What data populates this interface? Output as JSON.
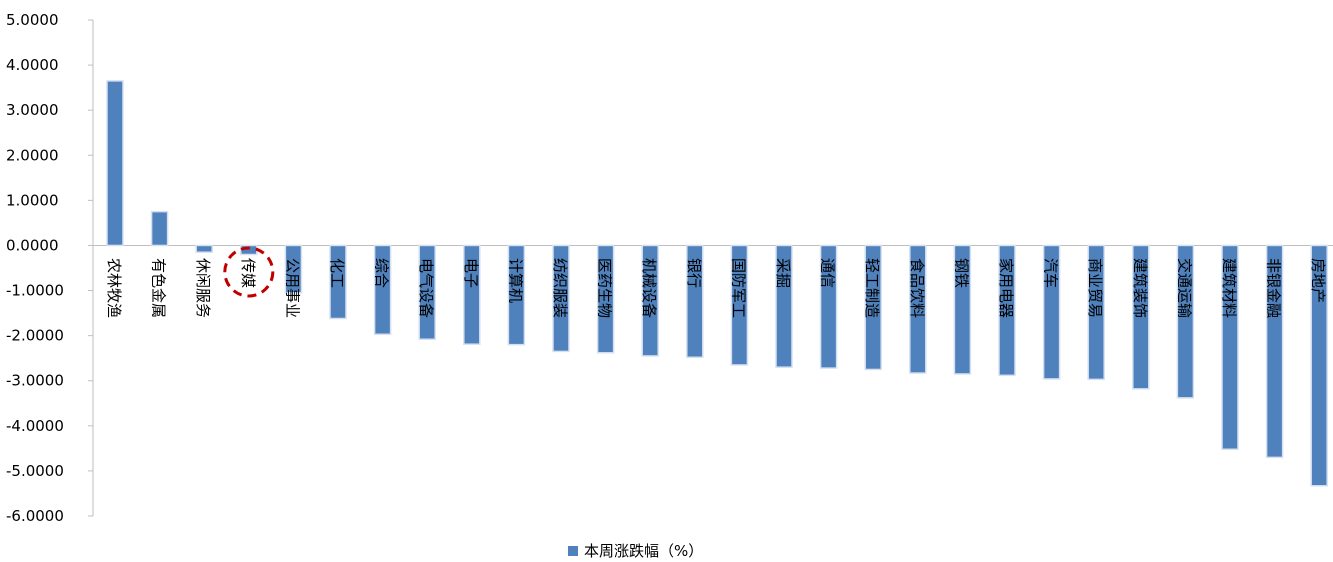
{
  "chart_data": {
    "type": "bar",
    "categories": [
      "农林牧渔",
      "有色金属",
      "休闲服务",
      "传媒",
      "公用事业",
      "化工",
      "综合",
      "电气设备",
      "电子",
      "计算机",
      "纺织服装",
      "医药生物",
      "机械设备",
      "银行",
      "国防军工",
      "采掘",
      "通信",
      "轻工制造",
      "食品饮料",
      "钢铁",
      "家用电器",
      "汽车",
      "商业贸易",
      "建筑装饰",
      "交通运输",
      "建筑材料",
      "非银金融",
      "房地产"
    ],
    "series": [
      {
        "name": "本周涨跌幅（%）",
        "values": [
          3.65,
          0.75,
          -0.15,
          -0.2,
          -1.05,
          -1.62,
          -1.97,
          -2.08,
          -2.19,
          -2.2,
          -2.35,
          -2.38,
          -2.45,
          -2.48,
          -2.65,
          -2.7,
          -2.72,
          -2.75,
          -2.83,
          -2.85,
          -2.88,
          -2.96,
          -2.97,
          -3.18,
          -3.38,
          -4.52,
          -4.7,
          -5.33
        ]
      }
    ],
    "yticks": [
      "5.0000",
      "4.0000",
      "3.0000",
      "2.0000",
      "1.0000",
      "0.0000",
      "-1.0000",
      "-2.0000",
      "-3.0000",
      "-4.0000",
      "-5.0000",
      "-6.0000"
    ],
    "ylim": [
      -6,
      5
    ],
    "legend_position": "bottom",
    "highlighted_category": "传媒",
    "colors": {
      "bar": "#4F81BD",
      "bar_edge": "#D5E1F1",
      "axis": "#BFBFBF",
      "highlight": "#C00000"
    }
  },
  "legend": {
    "label": "本周涨跌幅（%）"
  }
}
